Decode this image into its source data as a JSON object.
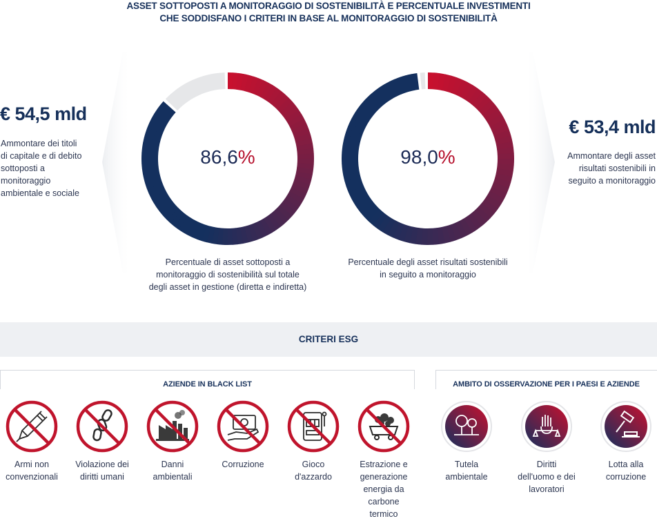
{
  "title": {
    "line1": "ASSET SOTTOPOSTI A MONITORAGGIO DI SOSTENIBILITÀ E PERCENTUALE INVESTIMENTI",
    "line2": "CHE SODDISFANO I CRITERI IN BASE AL MONITORAGGIO DI SOSTENIBILITÀ"
  },
  "left_panel": {
    "amount": "€ 54,5 mld",
    "desc": [
      "Ammontare dei titoli",
      "di capitale e di debito",
      "sottoposti a",
      "monitoraggio",
      "ambientale e sociale"
    ]
  },
  "right_panel": {
    "amount": "€ 53,4 mld",
    "desc": [
      "Ammontare degli asset",
      "risultati sostenibili in",
      "seguito a monitoraggio"
    ]
  },
  "chart_data": [
    {
      "type": "pie",
      "values": [
        86.6,
        13.4
      ],
      "center_value": "86,6",
      "center_suffix": "%",
      "caption": [
        "Percentuale di asset sottoposti a",
        "monitoraggio di sostenibilità sul totale",
        "degli asset in gestione (diretta e indiretta)"
      ]
    },
    {
      "type": "pie",
      "values": [
        98.0,
        2.0
      ],
      "center_value": "98,0",
      "center_suffix": "%",
      "caption": [
        "Percentuale degli asset risultati sostenibili",
        "in seguito a monitoraggio"
      ]
    }
  ],
  "colors": {
    "navy": "#14305e",
    "red": "#c8102e",
    "remainder": "#e6e7e9",
    "ban_red": "#c0142c"
  },
  "banner": {
    "label": "CRITERI ESG"
  },
  "blacklist": {
    "title": "AZIENDE IN BLACK LIST",
    "items": [
      {
        "icon": "missile-icon",
        "lines": [
          "Armi non",
          "convenzionali"
        ]
      },
      {
        "icon": "chain-icon",
        "lines": [
          "Violazione dei",
          "diritti umani"
        ]
      },
      {
        "icon": "factory-icon",
        "lines": [
          "Danni",
          "ambientali"
        ]
      },
      {
        "icon": "money-hand-icon",
        "lines": [
          "Corruzione"
        ]
      },
      {
        "icon": "slot-machine-icon",
        "lines": [
          "Gioco",
          "d'azzardo"
        ]
      },
      {
        "icon": "coal-cart-icon",
        "lines": [
          "Estrazione e",
          "generazione",
          "energia da",
          "carbone",
          "termico"
        ]
      }
    ]
  },
  "observation": {
    "title": "AMBITO DI OSSERVAZIONE PER I PAESI E AZIENDE",
    "items": [
      {
        "icon": "trees-icon",
        "lines": [
          "Tutela",
          "ambientale"
        ]
      },
      {
        "icon": "scales-hand-icon",
        "lines": [
          "Diritti",
          "dell'uomo e dei",
          "lavoratori"
        ]
      },
      {
        "icon": "gavel-icon",
        "lines": [
          "Lotta alla",
          "corruzione"
        ]
      }
    ]
  }
}
